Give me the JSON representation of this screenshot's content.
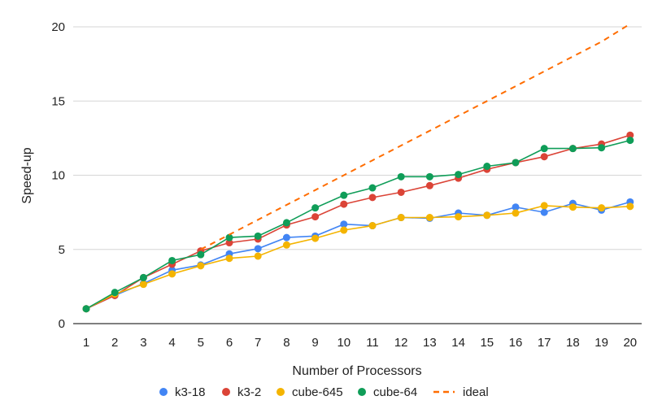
{
  "chart_data": {
    "type": "line",
    "title": "",
    "xlabel": "Number of Processors",
    "ylabel": "Speed-up",
    "x": [
      1,
      2,
      3,
      4,
      5,
      6,
      7,
      8,
      9,
      10,
      11,
      12,
      13,
      14,
      15,
      16,
      17,
      18,
      19,
      20
    ],
    "x_tick_labels": [
      "1",
      "2",
      "3",
      "4",
      "5",
      "6",
      "7",
      "8",
      "9",
      "10",
      "11",
      "12",
      "13",
      "14",
      "15",
      "16",
      "17",
      "18",
      "19",
      "20"
    ],
    "ylim": [
      0,
      20
    ],
    "y_ticks": [
      0,
      5,
      10,
      15,
      20
    ],
    "y_tick_labels": [
      "0",
      "5",
      "10",
      "15",
      "20"
    ],
    "grid": true,
    "legend_position": "bottom",
    "series": [
      {
        "name": "k3-18",
        "color": "#4285F4",
        "style": "line-markers",
        "values": [
          1.0,
          1.9,
          2.7,
          3.6,
          3.95,
          4.7,
          5.05,
          5.8,
          5.9,
          6.7,
          6.6,
          7.15,
          7.1,
          7.45,
          7.3,
          7.85,
          7.5,
          8.1,
          7.65,
          8.2
        ]
      },
      {
        "name": "k3-2",
        "color": "#DB4437",
        "style": "line-markers",
        "values": [
          1.0,
          1.9,
          3.1,
          4.0,
          4.9,
          5.45,
          5.7,
          6.65,
          7.2,
          8.05,
          8.5,
          8.85,
          9.3,
          9.8,
          10.4,
          10.85,
          11.25,
          11.8,
          12.1,
          12.7
        ]
      },
      {
        "name": "cube-645",
        "color": "#F4B400",
        "style": "line-markers",
        "values": [
          1.0,
          2.0,
          2.65,
          3.35,
          3.9,
          4.4,
          4.55,
          5.3,
          5.75,
          6.3,
          6.6,
          7.15,
          7.15,
          7.2,
          7.3,
          7.45,
          7.95,
          7.85,
          7.8,
          7.9
        ]
      },
      {
        "name": "cube-64",
        "color": "#0F9D58",
        "style": "line-markers",
        "values": [
          1.0,
          2.1,
          3.1,
          4.25,
          4.65,
          5.8,
          5.9,
          6.8,
          7.8,
          8.65,
          9.15,
          9.9,
          9.9,
          10.05,
          10.6,
          10.85,
          11.8,
          11.8,
          11.85,
          12.35
        ]
      },
      {
        "name": "ideal",
        "color": "#FF6D01",
        "style": "dashed",
        "values": [
          1,
          2,
          3,
          4,
          5,
          6,
          7,
          8,
          9,
          10,
          11,
          12,
          13,
          14,
          15,
          16,
          17,
          18,
          19,
          20.2
        ]
      }
    ]
  }
}
